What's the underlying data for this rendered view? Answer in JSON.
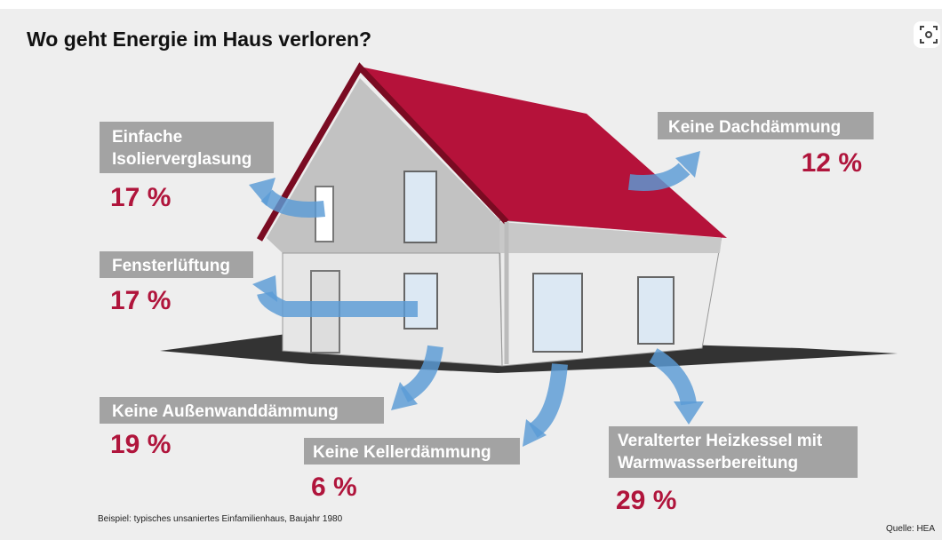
{
  "title": "Wo geht Energie im Haus verloren?",
  "items": [
    {
      "label": [
        "Einfache",
        "Isolierverglasung"
      ],
      "value": "17 %"
    },
    {
      "label": [
        "Fensterlüftung"
      ],
      "value": "17 %"
    },
    {
      "label": [
        "Keine Außenwanddämmung"
      ],
      "value": "19 %"
    },
    {
      "label": [
        "Keine Kellerdämmung"
      ],
      "value": "6 %"
    },
    {
      "label": [
        "Keine Dachdämmung"
      ],
      "value": "12 %"
    },
    {
      "label": [
        "Veralterter Heizkessel mit",
        "Warmwasserbereitung"
      ],
      "value": "29 %"
    }
  ],
  "footnote": "Beispiel: typisches unsaniertes Einfamilienhaus, Baujahr 1980",
  "source": "Quelle: HEA"
}
